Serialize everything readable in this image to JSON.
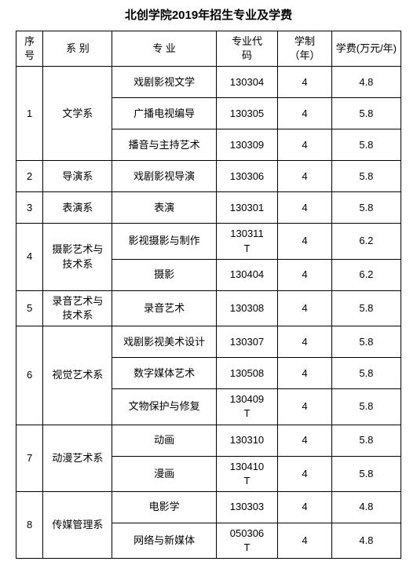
{
  "title": "北创学院2019年招生专业及学费",
  "headers": {
    "idx_l1": "序",
    "idx_l2": "号",
    "dept": "系 别",
    "major": "专 业",
    "code_l1": "专业代",
    "code_l2": "码",
    "duration_l1": "学制",
    "duration_l2": "（年）",
    "fee": "学费(万元/年)"
  },
  "groups": [
    {
      "idx": "1",
      "dept": "文学系",
      "rows": [
        {
          "major": "戏剧影视文学",
          "code": "130304",
          "duration": "4",
          "fee": "4.8"
        },
        {
          "major": "广播电视编导",
          "code": "130305",
          "duration": "4",
          "fee": "5.8"
        },
        {
          "major": "播音与主持艺术",
          "code": "130309",
          "duration": "4",
          "fee": "5.8"
        }
      ]
    },
    {
      "idx": "2",
      "dept": "导演系",
      "rows": [
        {
          "major": "戏剧影视导演",
          "code": "130306",
          "duration": "4",
          "fee": "5.8"
        }
      ]
    },
    {
      "idx": "3",
      "dept": "表演系",
      "rows": [
        {
          "major": "表演",
          "code": "130301",
          "duration": "4",
          "fee": "5.8"
        }
      ]
    },
    {
      "idx": "4",
      "dept_l1": "摄影艺术与",
      "dept_l2": "技术系",
      "rows": [
        {
          "major": "影视摄影与制作",
          "code_l1": "130311",
          "code_l2": "T",
          "duration": "4",
          "fee": "6.2"
        },
        {
          "major": "摄影",
          "code": "130404",
          "duration": "4",
          "fee": "6.2"
        }
      ]
    },
    {
      "idx": "5",
      "dept_l1": "录音艺术与",
      "dept_l2": "技术系",
      "rows": [
        {
          "major": "录音艺术",
          "code": "130308",
          "duration": "4",
          "fee": "5.8"
        }
      ]
    },
    {
      "idx": "6",
      "dept": "视觉艺术系",
      "rows": [
        {
          "major": "戏剧影视美术设计",
          "code": "130307",
          "duration": "4",
          "fee": "5.8"
        },
        {
          "major": "数字媒体艺术",
          "code": "130508",
          "duration": "4",
          "fee": "5.8"
        },
        {
          "major": "文物保护与修复",
          "code_l1": "130409",
          "code_l2": "T",
          "duration": "4",
          "fee": "5.8"
        }
      ]
    },
    {
      "idx": "7",
      "dept": "动漫艺术系",
      "rows": [
        {
          "major": "动画",
          "code": "130310",
          "duration": "4",
          "fee": "5.8"
        },
        {
          "major": "漫画",
          "code_l1": "130410",
          "code_l2": "T",
          "duration": "4",
          "fee": "5.8"
        }
      ]
    },
    {
      "idx": "8",
      "dept": "传媒管理系",
      "rows": [
        {
          "major": "电影学",
          "code": "130303",
          "duration": "4",
          "fee": "4.8"
        },
        {
          "major": "网络与新媒体",
          "code_l1": "050306",
          "code_l2": "T",
          "duration": "4",
          "fee": "4.8"
        }
      ]
    }
  ]
}
